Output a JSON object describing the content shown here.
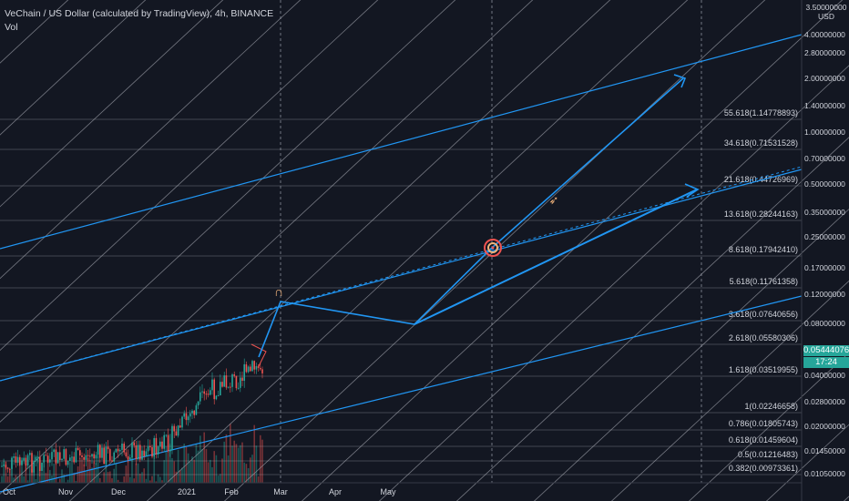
{
  "legend": {
    "title": "VeChain / US Dollar (calculated by TradingView), 4h, BINANCE",
    "sub": "Vol"
  },
  "price_scale": {
    "top_value": "3.50000000",
    "currency": "USD",
    "current_price": "0.05444076",
    "countdown": "17:24"
  },
  "colors": {
    "background": "#131722",
    "grid": "#2a2e39",
    "trendline": "#2196f3",
    "fib_line": "#787b86",
    "candle_up": "#26a69a",
    "candle_down": "#ef5350",
    "projection_tag": "#26a69a"
  },
  "icons": [
    "magnet-icon",
    "target-icon",
    "rocket-icon"
  ],
  "chart_data": {
    "type": "candlestick",
    "x_axis": {
      "tick_labels": [
        "Oct",
        "Nov",
        "Dec",
        "2021",
        "Feb",
        "Mar",
        "Apr",
        "May"
      ]
    },
    "y_axis": {
      "scale": "log",
      "tick_labels": [
        "4.00000000",
        "2.80000000",
        "2.00000000",
        "1.40000000",
        "1.00000000",
        "0.70000000",
        "0.50000000",
        "0.35000000",
        "0.25000000",
        "0.17000000",
        "0.12000000",
        "0.08000000",
        "0.04000000",
        "0.02800000",
        "0.02000000",
        "0.01450000",
        "0.01050000"
      ]
    },
    "fib_levels": [
      {
        "label": "55.618(1.14778893)"
      },
      {
        "label": "34.618(0.71531528)"
      },
      {
        "label": "21.618(0.44726969)"
      },
      {
        "label": "13.618(0.28244163)"
      },
      {
        "label": "8.618(0.17942410)"
      },
      {
        "label": "5.618(0.11761358)"
      },
      {
        "label": "3.618(0.07640656)"
      },
      {
        "label": "2.618(0.05580306)"
      },
      {
        "label": "1.618(0.03519955)"
      },
      {
        "label": "1(0.02246658)"
      },
      {
        "label": "0.786(0.01805743)"
      },
      {
        "label": "0.618(0.01459604)"
      },
      {
        "label": "0.5(0.01216483)"
      },
      {
        "label": "0.382(0.00973361)"
      }
    ]
  }
}
